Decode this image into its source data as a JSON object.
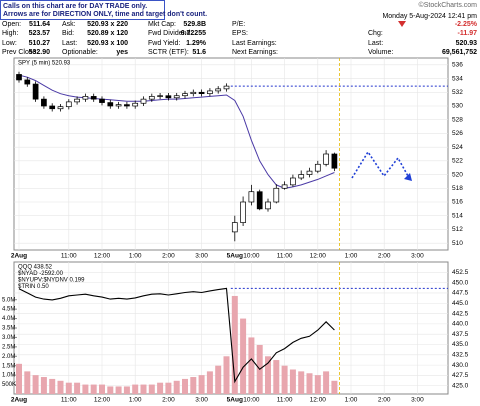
{
  "header": {
    "notice": [
      "Calls on this chart are for DAY TRADE only.",
      "Arrows are for DIRECTION ONLY, time and target don't count."
    ],
    "watermark": "©StockCharts.com",
    "datetime": "Monday  5-Aug-2024  12:41 pm",
    "rows": [
      [
        {
          "label": "Open:",
          "value": "511.64"
        },
        {
          "label": "Ask:",
          "value": "520.93 x 220"
        },
        {
          "label": "Mkt Cap:",
          "value": "529.8B"
        },
        {
          "label": "P/E:"
        },
        {
          "value": "-2.25%"
        }
      ],
      [
        {
          "label": "High:",
          "value": "523.57"
        },
        {
          "label": "Bid:",
          "value": "520.89 x 120"
        },
        {
          "label": "Fwd Dividend:",
          "value": "6.72255"
        },
        {
          "label": "EPS:"
        },
        {
          "label": "Chg:",
          "value": "-11.97"
        }
      ],
      [
        {
          "label": "Low:",
          "value": "510.27"
        },
        {
          "label": "Last:",
          "value": "520.93 x 100"
        },
        {
          "label": "Fwd Yield:",
          "value": "1.29%"
        },
        {
          "label": "Last Earnings:"
        },
        {
          "label": "Last:",
          "value": "520.93"
        }
      ],
      [
        {
          "label": "Prev Close:",
          "value": "532.90"
        },
        {
          "label": "Optionable:",
          "value": "yes"
        },
        {
          "label": "SCTR (ETF):",
          "value": "51.6"
        },
        {
          "label": "Next Earnings:"
        },
        {
          "label": "Volume:",
          "value": "69,561,752"
        }
      ]
    ]
  },
  "chart_data": [
    {
      "type": "candlestick",
      "legend": [
        "SPY (5 min) 520.93"
      ],
      "categories": [
        "2Aug",
        null,
        null,
        null,
        null,
        null,
        "11:00",
        null,
        null,
        null,
        "12:00",
        null,
        null,
        null,
        "1:00",
        null,
        null,
        null,
        "2:00",
        null,
        null,
        null,
        "3:00",
        null,
        null,
        null,
        "5Aug",
        null,
        "10:00",
        null,
        null,
        null,
        "11:00",
        null,
        null,
        null,
        "12:00",
        null,
        null,
        null,
        "1:00",
        null,
        null,
        null,
        "2:00",
        null,
        null,
        null,
        "3:00",
        null,
        null,
        null
      ],
      "open": [
        534.6,
        533.8,
        533.2,
        531.0,
        530.0,
        529.6,
        529.9,
        530.6,
        531.0,
        531.4,
        531.0,
        530.5,
        530.0,
        530.2,
        530.0,
        530.4,
        531.0,
        531.4,
        531.5,
        531.2,
        531.5,
        531.8,
        532.0,
        531.8,
        532.2,
        532.5,
        511.64,
        513.0,
        516.0,
        517.5,
        515.0,
        516.0,
        518.0,
        518.5,
        519.5,
        520.0,
        520.5,
        521.5,
        523.0,
        null,
        null,
        null,
        null,
        null,
        null,
        null,
        null,
        null,
        null,
        null,
        null,
        null
      ],
      "high": [
        535.0,
        534.2,
        533.6,
        531.4,
        530.4,
        530.3,
        531.0,
        531.4,
        531.8,
        531.8,
        531.4,
        530.9,
        530.6,
        530.6,
        530.8,
        531.4,
        531.8,
        531.9,
        531.9,
        531.9,
        532.2,
        532.4,
        532.4,
        532.6,
        532.9,
        533.3,
        514.0,
        516.8,
        518.5,
        517.8,
        516.5,
        518.6,
        519.0,
        520.0,
        520.6,
        521.0,
        522.0,
        523.57,
        523.2,
        null,
        null,
        null,
        null,
        null,
        null,
        null,
        null,
        null,
        null,
        null,
        null,
        null
      ],
      "low": [
        533.4,
        532.8,
        530.6,
        529.6,
        529.2,
        529.2,
        529.5,
        530.2,
        530.6,
        530.6,
        530.1,
        529.6,
        529.6,
        529.6,
        529.6,
        530.0,
        530.6,
        531.0,
        530.8,
        530.8,
        531.1,
        531.4,
        531.4,
        531.4,
        531.8,
        532.1,
        510.27,
        512.5,
        515.5,
        514.8,
        514.6,
        515.8,
        517.8,
        518.2,
        519.2,
        519.6,
        520.2,
        521.2,
        520.5,
        null,
        null,
        null,
        null,
        null,
        null,
        null,
        null,
        null,
        null,
        null,
        null,
        null
      ],
      "close": [
        533.8,
        533.2,
        531.0,
        530.0,
        529.6,
        529.9,
        530.6,
        531.0,
        531.4,
        531.0,
        530.5,
        530.0,
        530.2,
        530.0,
        530.4,
        531.0,
        531.4,
        531.5,
        531.2,
        531.5,
        531.8,
        532.0,
        531.8,
        532.2,
        532.5,
        532.9,
        513.0,
        516.0,
        517.5,
        515.0,
        516.0,
        518.0,
        518.5,
        519.5,
        520.0,
        520.5,
        521.5,
        523.0,
        520.93,
        null,
        null,
        null,
        null,
        null,
        null,
        null,
        null,
        null,
        null,
        null,
        null,
        null
      ],
      "moving_average": {
        "color": "#4b3aa6",
        "values": [
          534.5,
          534.2,
          533.7,
          533.0,
          532.3,
          531.8,
          531.5,
          531.3,
          531.2,
          531.1,
          531.0,
          530.9,
          530.8,
          530.7,
          530.7,
          530.7,
          530.8,
          530.9,
          531.0,
          531.0,
          531.1,
          531.2,
          531.3,
          531.4,
          531.5,
          531.6,
          530.8,
          528.5,
          525.0,
          522.0,
          520.0,
          518.5,
          518.0,
          518.2,
          518.5,
          518.9,
          519.3,
          519.8,
          520.3,
          null,
          null,
          null,
          null,
          null,
          null,
          null,
          null,
          null,
          null,
          null,
          null,
          null
        ]
      },
      "prev_close_line": {
        "value": 532.9,
        "color": "#2233cc"
      },
      "ylim": [
        509,
        537
      ],
      "yticks": [
        510,
        512,
        514,
        516,
        518,
        520,
        522,
        524,
        526,
        528,
        530,
        532,
        534,
        536
      ],
      "grid": true
    },
    {
      "type": "line",
      "legend": [
        "QQQ 438.52",
        "$NYAD -2592.00",
        "$NYUPV:$NYDNV 0.199",
        "$TRIN 0.50"
      ],
      "categories": [
        "2Aug",
        null,
        null,
        null,
        null,
        null,
        "11:00",
        null,
        null,
        null,
        "12:00",
        null,
        null,
        null,
        "1:00",
        null,
        null,
        null,
        "2:00",
        null,
        null,
        null,
        "3:00",
        null,
        null,
        null,
        "5Aug",
        null,
        "10:00",
        null,
        null,
        null,
        "11:00",
        null,
        null,
        null,
        "12:00",
        null,
        null,
        null,
        "1:00",
        null,
        null,
        null,
        "2:00",
        null,
        null,
        null,
        "3:00",
        null,
        null,
        null
      ],
      "series": [
        {
          "color": "#000000",
          "values": [
            448.5,
            447.5,
            446.5,
            446.0,
            445.8,
            446.2,
            446.8,
            447.0,
            447.2,
            446.8,
            446.5,
            446.0,
            446.2,
            446.0,
            446.3,
            446.8,
            447.2,
            447.3,
            447.0,
            447.3,
            447.6,
            447.8,
            447.6,
            448.0,
            448.3,
            448.6,
            426.0,
            429.5,
            431.5,
            429.0,
            430.5,
            433.0,
            434.0,
            435.5,
            436.5,
            437.0,
            438.5,
            440.5,
            438.52,
            null,
            null,
            null,
            null,
            null,
            null,
            null,
            null,
            null,
            null,
            null,
            null,
            null
          ]
        }
      ],
      "volume": {
        "color": "#e8a6ae",
        "values": [
          1600000,
          1200000,
          1000000,
          900000,
          800000,
          700000,
          600000,
          600000,
          500000,
          500000,
          500000,
          400000,
          400000,
          400000,
          500000,
          500000,
          500000,
          600000,
          600000,
          700000,
          800000,
          900000,
          1000000,
          1200000,
          1500000,
          2000000,
          5200000,
          4000000,
          3000000,
          2600000,
          2000000,
          1800000,
          1500000,
          1300000,
          1200000,
          1100000,
          1000000,
          1200000,
          700000,
          null,
          null,
          null,
          null,
          null,
          null,
          null,
          null,
          null,
          null,
          null,
          null,
          null
        ]
      },
      "prev_close_line": {
        "value": 448.6,
        "color": "#2233cc"
      },
      "ylim": [
        423,
        455
      ],
      "yticks": [
        {
          "value": 425,
          "label": "425.0"
        },
        427.5,
        {
          "value": 430,
          "label": "430.0"
        },
        432.5,
        {
          "value": 435,
          "label": "435.0"
        },
        437.5,
        {
          "value": 440,
          "label": "440.0"
        },
        442.5,
        {
          "value": 445,
          "label": "445.0"
        },
        447.5,
        {
          "value": 450,
          "label": "450.0"
        },
        452.5
      ],
      "y2lim": [
        0,
        7000000
      ],
      "y2ticks": [
        {
          "value": 500000,
          "label": "500K"
        },
        {
          "value": 1000000,
          "label": "1.0M"
        },
        {
          "value": 1500000,
          "label": "1.5M"
        },
        {
          "value": 2000000,
          "label": "2.0M"
        },
        {
          "value": 2500000,
          "label": "2.5M"
        },
        {
          "value": 3000000,
          "label": "3.0M"
        },
        {
          "value": 3500000,
          "label": "3.5M"
        },
        {
          "value": 4000000,
          "label": "4.0M"
        },
        {
          "value": 4500000,
          "label": "4.5M"
        },
        {
          "value": 5000000,
          "label": "5.0M"
        }
      ],
      "grid": true
    }
  ]
}
